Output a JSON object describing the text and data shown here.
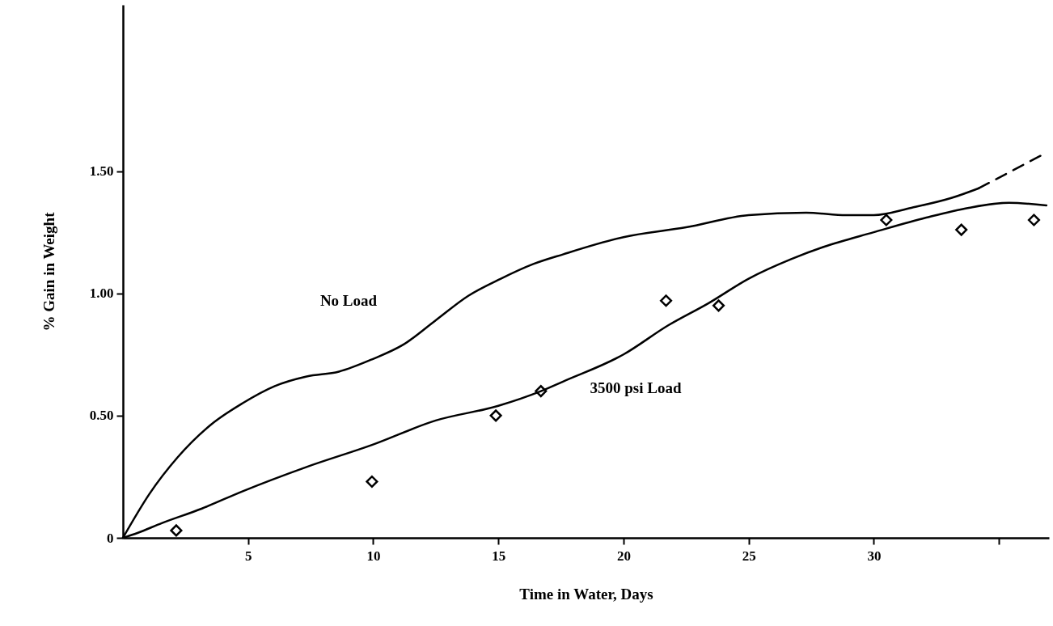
{
  "chart_data": {
    "type": "line",
    "xlabel": "Time in Water, Days",
    "ylabel": "% Gain in Weight",
    "xlim": [
      0,
      37
    ],
    "ylim": [
      0,
      2.18
    ],
    "xticks": [
      5,
      10,
      15,
      20,
      25,
      30,
      {
        "value": 35,
        "label": null
      }
    ],
    "yticks": [
      0,
      {
        "value": 0.5,
        "label": "0.50"
      },
      {
        "value": 1.0,
        "label": "1.00"
      },
      {
        "value": 1.5,
        "label": "1.50"
      }
    ],
    "grid": false,
    "series": [
      {
        "color": "#000000",
        "line_style": "solid",
        "marker": "none",
        "x": [
          0,
          1.06,
          2.19,
          3.48,
          4.77,
          6.05,
          7.34,
          8.63,
          9.95,
          11.2,
          12.5,
          13.8,
          15.1,
          16.4,
          17.6,
          20.0,
          22.5,
          25.0,
          27.3,
          28.9,
          30.0,
          31.5,
          33.1,
          34.2
        ],
        "values": [
          0,
          0.18,
          0.33,
          0.46,
          0.55,
          0.62,
          0.66,
          0.68,
          0.73,
          0.79,
          0.89,
          0.99,
          1.06,
          1.12,
          1.16,
          1.23,
          1.27,
          1.32,
          1.33,
          1.32,
          1.32,
          1.35,
          1.39,
          1.43
        ]
      },
      {
        "color": "#000000",
        "line_style": "dashed",
        "marker": "none",
        "x": [
          34.2,
          36.8
        ],
        "values": [
          1.43,
          1.57
        ]
      },
      {
        "color": "#000000",
        "line_style": "solid",
        "marker": "none",
        "x": [
          0,
          0.58,
          1.55,
          3.16,
          4.77,
          7.34,
          9.95,
          12.5,
          15.0,
          16.7,
          17.6,
          20.0,
          21.8,
          23.4,
          25.0,
          26.7,
          28.0,
          30.0,
          32.1,
          33.8,
          35.4,
          36.9
        ],
        "values": [
          0,
          0.02,
          0.06,
          0.12,
          0.19,
          0.29,
          0.38,
          0.48,
          0.54,
          0.6,
          0.64,
          0.75,
          0.87,
          0.96,
          1.06,
          1.14,
          1.19,
          1.25,
          1.31,
          1.35,
          1.37,
          1.36
        ]
      },
      {
        "type": "scatter",
        "color": "#000000",
        "marker": "diamond",
        "x": [
          2.13,
          9.95,
          14.9,
          16.7,
          21.7,
          23.8,
          30.5,
          33.5,
          36.4
        ],
        "values": [
          0.03,
          0.23,
          0.5,
          0.6,
          0.97,
          0.95,
          1.3,
          1.26,
          1.3
        ]
      }
    ],
    "annotations": [
      "No Load",
      "3500 psi Load"
    ]
  }
}
